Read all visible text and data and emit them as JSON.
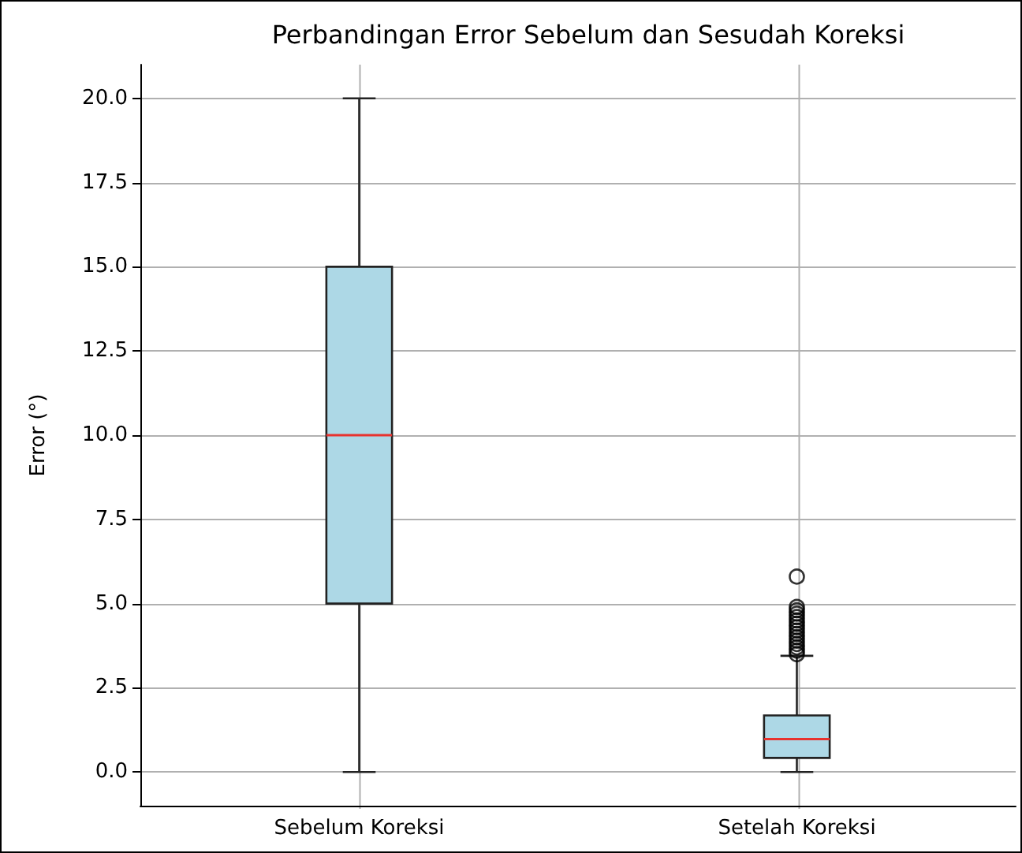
{
  "chart_data": {
    "type": "box",
    "title": "Perbandingan Error Sebelum dan Sesudah Koreksi",
    "ylabel": "Error (°)",
    "categories": [
      "Sebelum Koreksi",
      "Setelah Koreksi"
    ],
    "boxes": [
      {
        "low": 0,
        "q1": 5,
        "median": 10,
        "q3": 15,
        "high": 20
      },
      {
        "low": 0,
        "q1": 0.42,
        "median": 0.98,
        "q3": 1.68,
        "high": 3.45,
        "outliers": [
          3.5,
          3.6,
          3.7,
          3.8,
          3.9,
          4.0,
          4.1,
          4.2,
          4.3,
          4.4,
          4.5,
          4.6,
          4.7,
          4.8,
          4.9,
          5.8
        ]
      }
    ],
    "color": "#add8e6",
    "ylim": [
      -1,
      21
    ],
    "yticks": [
      {
        "value": 0,
        "label": "0.0"
      },
      {
        "value": 2.5,
        "label": "2.5"
      },
      {
        "value": 5,
        "label": "5.0"
      },
      {
        "value": 7.5,
        "label": "7.5"
      },
      {
        "value": 10,
        "label": "10.0"
      },
      {
        "value": 12.5,
        "label": "12.5"
      },
      {
        "value": 15,
        "label": "15.0"
      },
      {
        "value": 17.5,
        "label": "17.5"
      },
      {
        "value": 20,
        "label": "20.0"
      }
    ],
    "grid": true,
    "marker": "circle"
  }
}
